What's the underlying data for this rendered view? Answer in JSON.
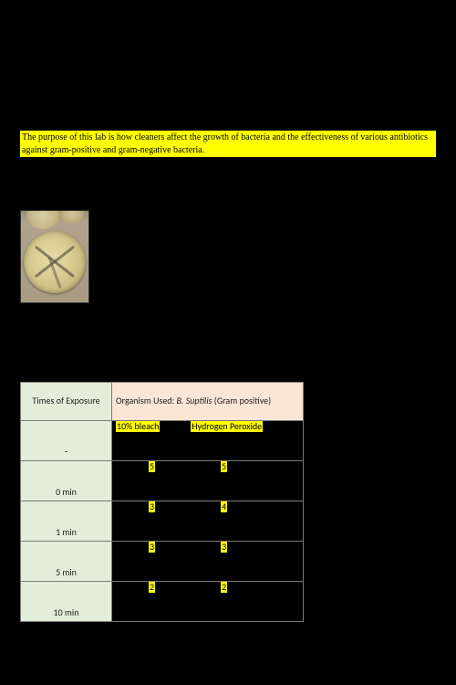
{
  "intro": {
    "text": "The purpose of this lab is how cleaners affect the growth of bacteria and the effectiveness of various antibiotics against gram-positive and gram-negative bacteria."
  },
  "table": {
    "header_left": "Times of Exposure",
    "header_right_prefix": "Organism Used: ",
    "header_right_italic": "B. Suptilis",
    "header_right_suffix": " (Gram positive)",
    "sub_dash": "-",
    "sub_col_a": "10% bleach",
    "sub_col_b": "Hydrogen Peroxide",
    "rows": [
      {
        "time": "0 min",
        "a": "5",
        "b": "5"
      },
      {
        "time": "1 min",
        "a": "3",
        "b": "4"
      },
      {
        "time": "5 min",
        "a": "3",
        "b": "3"
      },
      {
        "time": "10 min",
        "a": "2",
        "b": "2"
      }
    ]
  },
  "colors": {
    "page_bg": "#000000",
    "highlight": "#ffff00",
    "table_left_bg": "#e2eed9",
    "table_header_right_bg": "#fbe5d5",
    "table_border": "#7a7a7a"
  }
}
